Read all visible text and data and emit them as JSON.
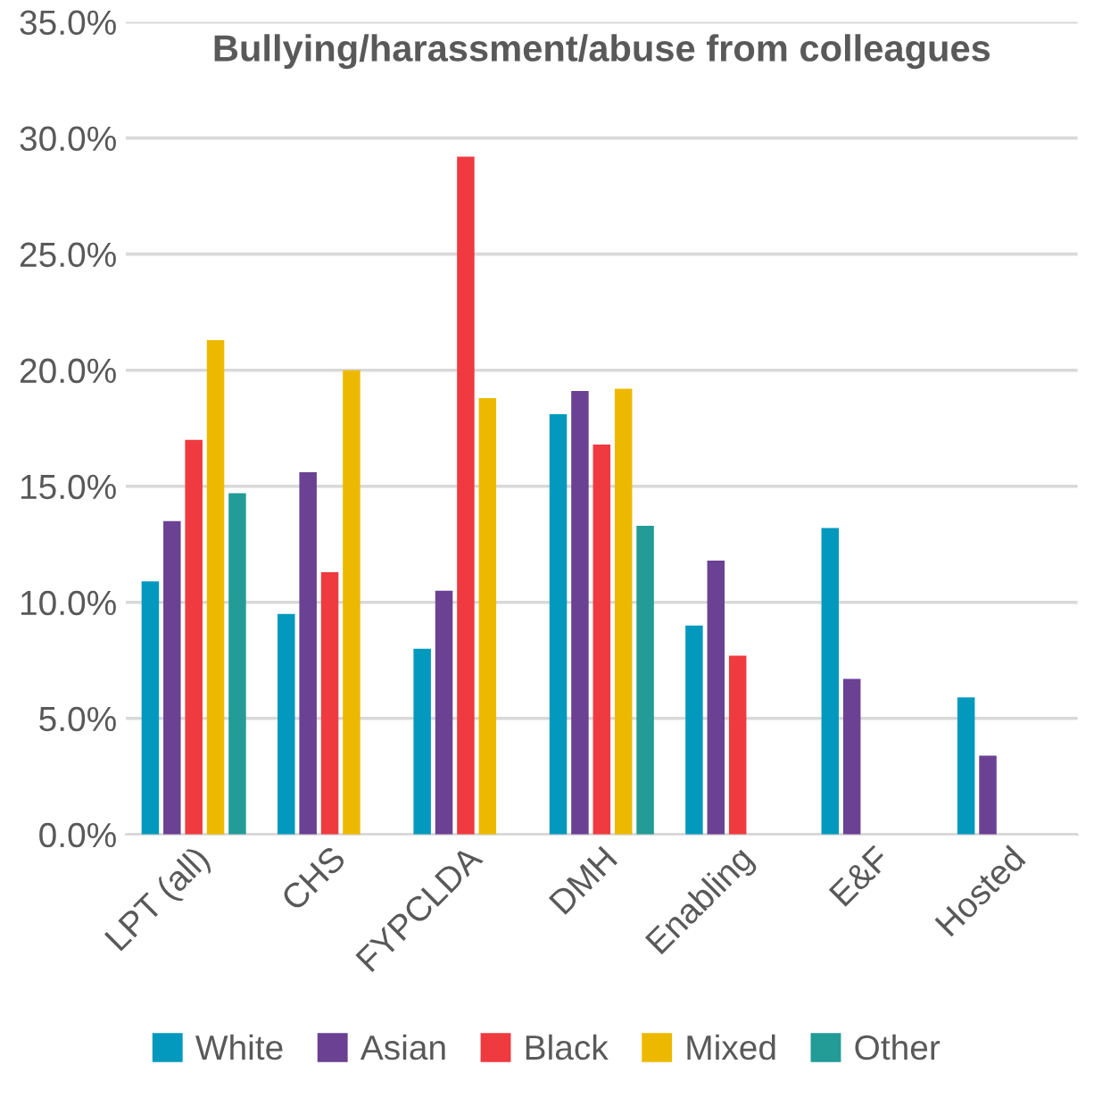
{
  "chart_data": {
    "type": "bar",
    "title": "Bullying/harassment/abuse from colleagues",
    "categories": [
      "LPT (all)",
      "CHS",
      "FYPCLDA",
      "DMH",
      "Enabling",
      "E&F",
      "Hosted"
    ],
    "series": [
      {
        "name": "White",
        "color": "#0399be",
        "values": [
          10.9,
          9.5,
          8.0,
          18.1,
          9.0,
          13.2,
          5.9
        ]
      },
      {
        "name": "Asian",
        "color": "#6a4193",
        "values": [
          13.5,
          15.6,
          10.5,
          19.1,
          11.8,
          6.7,
          3.4
        ]
      },
      {
        "name": "Black",
        "color": "#ef3a40",
        "values": [
          17.0,
          11.3,
          29.2,
          16.8,
          7.7,
          null,
          null
        ]
      },
      {
        "name": "Mixed",
        "color": "#edb900",
        "values": [
          21.3,
          20.0,
          18.8,
          19.2,
          null,
          null,
          null
        ]
      },
      {
        "name": "Other",
        "color": "#239b96",
        "values": [
          14.7,
          null,
          null,
          13.3,
          null,
          null,
          null
        ]
      }
    ],
    "ylim": [
      0,
      35
    ],
    "yticks": [
      {
        "value": 0,
        "label": "0.0%"
      },
      {
        "value": 5,
        "label": "5.0%"
      },
      {
        "value": 10,
        "label": "10.0%"
      },
      {
        "value": 15,
        "label": "15.0%"
      },
      {
        "value": 20,
        "label": "20.0%"
      },
      {
        "value": 25,
        "label": "25.0%"
      },
      {
        "value": 30,
        "label": "30.0%"
      },
      {
        "value": 35,
        "label": "35.0%"
      }
    ],
    "grid": "y",
    "legend": "bottom"
  }
}
